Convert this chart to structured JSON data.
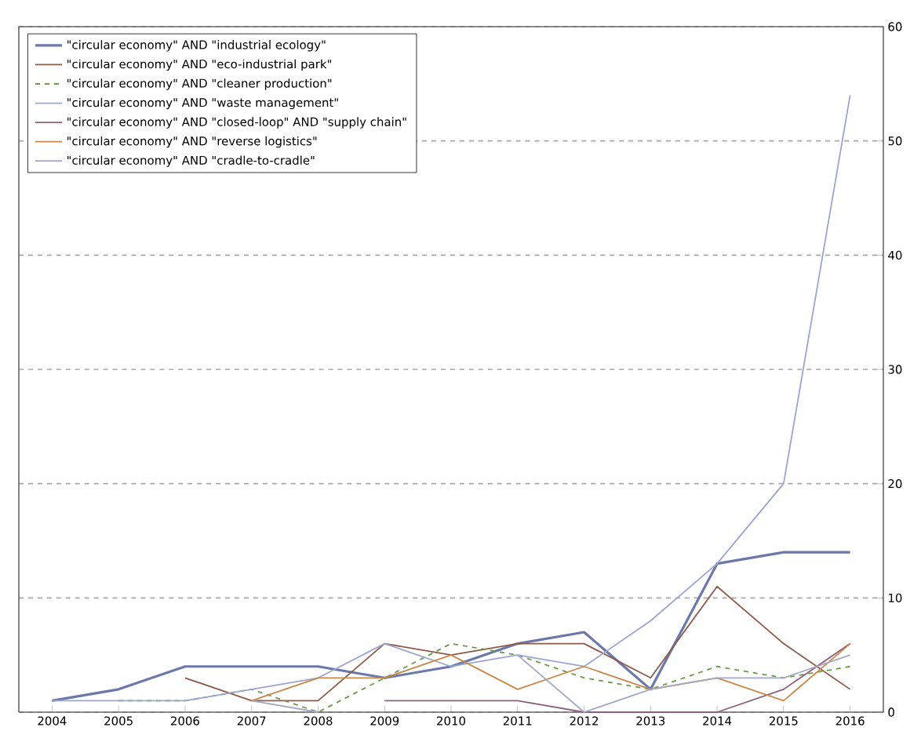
{
  "chart_data": {
    "type": "line",
    "categories": [
      "2004",
      "2005",
      "2006",
      "2007",
      "2008",
      "2009",
      "2010",
      "2011",
      "2012",
      "2013",
      "2014",
      "2015",
      "2016"
    ],
    "series": [
      {
        "name": "\"circular economy\" AND \"industrial ecology\"",
        "color": "#6b78a8",
        "values": [
          1,
          2,
          4,
          4,
          4,
          3,
          4,
          6,
          7,
          2,
          13,
          14,
          14
        ]
      },
      {
        "name": "\"circular economy\" AND \"eco-industrial park\"",
        "color": "#8b5a48",
        "values": [
          null,
          null,
          3,
          1,
          1,
          6,
          5,
          6,
          6,
          3,
          11,
          6,
          2
        ]
      },
      {
        "name": "\"circular economy\" AND \"cleaner production\"",
        "color": "#6a9a4a",
        "line_style": "dashed",
        "values": [
          null,
          1,
          1,
          2,
          0,
          3,
          6,
          5,
          3,
          2,
          4,
          3,
          4
        ]
      },
      {
        "name": "\"circular economy\" AND \"waste management\"",
        "color": "#9aa6d0",
        "values": [
          1,
          1,
          1,
          2,
          3,
          6,
          4,
          5,
          4,
          8,
          13,
          20,
          54
        ]
      },
      {
        "name": "\"circular economy\" AND \"closed-loop\" AND \"supply chain\"",
        "color": "#8a6080",
        "values": [
          null,
          null,
          null,
          null,
          null,
          1,
          1,
          1,
          0,
          0,
          0,
          2,
          6
        ]
      },
      {
        "name": "\"circular economy\" AND \"reverse logistics\"",
        "color": "#c8884a",
        "values": [
          null,
          null,
          null,
          1,
          3,
          3,
          5,
          2,
          4,
          2,
          3,
          1,
          6
        ]
      },
      {
        "name": "\"circular economy\" AND \"cradle-to-cradle\"",
        "color": "#a4a8c4",
        "values": [
          null,
          null,
          null,
          1,
          0,
          null,
          null,
          5,
          0,
          2,
          3,
          3,
          5
        ]
      }
    ],
    "ylim": [
      0,
      60
    ],
    "yticks": [
      0,
      10,
      20,
      30,
      40,
      50,
      60
    ],
    "grid": "y",
    "legend": "top left",
    "line_style": "solid",
    "marker": "none"
  }
}
